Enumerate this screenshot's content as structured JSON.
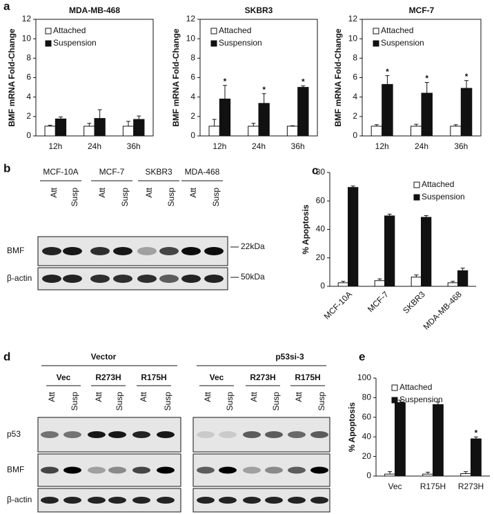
{
  "panel_labels": [
    "a",
    "b",
    "c",
    "d",
    "e"
  ],
  "chart_data": [
    {
      "type": "bar",
      "title": "MDA-MB-468",
      "y_label": "BMF mRNA Fold-Change",
      "box": true,
      "categories": [
        "12h",
        "24h",
        "36h"
      ],
      "ylim": [
        0,
        12
      ],
      "yticks": [
        0,
        2,
        4,
        6,
        8,
        10,
        12
      ],
      "series": [
        {
          "name": "Attached",
          "color": "#ffffff",
          "values": [
            1,
            1,
            1
          ],
          "errors": [
            0.1,
            0.3,
            0.5
          ]
        },
        {
          "name": "Suspension",
          "color": "#111111",
          "values": [
            1.75,
            1.8,
            1.7
          ],
          "errors": [
            0.2,
            0.9,
            0.35
          ]
        }
      ]
    },
    {
      "type": "bar",
      "title": "SKBR3",
      "y_label": "BMF mRNA Fold-Change",
      "box": true,
      "categories": [
        "12h",
        "24h",
        "36h"
      ],
      "ylim": [
        0,
        12
      ],
      "yticks": [
        0,
        2,
        4,
        6,
        8,
        10,
        12
      ],
      "series": [
        {
          "name": "Attached",
          "color": "#ffffff",
          "values": [
            1,
            1,
            1
          ],
          "errors": [
            0.7,
            0.3,
            0.05
          ]
        },
        {
          "name": "Suspension",
          "color": "#111111",
          "values": [
            3.8,
            3.35,
            5.0
          ],
          "errors": [
            1.4,
            1.0,
            0.15
          ],
          "significance": [
            "*",
            "*",
            "*"
          ]
        }
      ]
    },
    {
      "type": "bar",
      "title": "MCF-7",
      "y_label": "BMF mRNA Fold-Change",
      "box": true,
      "categories": [
        "12h",
        "24h",
        "36h"
      ],
      "ylim": [
        0,
        12
      ],
      "yticks": [
        0,
        2,
        4,
        6,
        8,
        10,
        12
      ],
      "series": [
        {
          "name": "Attached",
          "color": "#ffffff",
          "values": [
            1,
            1,
            1
          ],
          "errors": [
            0.15,
            0.2,
            0.15
          ]
        },
        {
          "name": "Suspension",
          "color": "#111111",
          "values": [
            5.3,
            4.4,
            4.9
          ],
          "errors": [
            0.9,
            1.1,
            0.8
          ],
          "significance": [
            "*",
            "*",
            "*"
          ]
        }
      ]
    },
    {
      "type": "bar",
      "y_label": "% Apoptosis",
      "box": false,
      "categories": [
        "MCF-10A",
        "MCF-7",
        "SKBR3",
        "MDA-MB-468"
      ],
      "ylim": [
        0,
        80
      ],
      "yticks": [
        0,
        20,
        40,
        60,
        80
      ],
      "series": [
        {
          "name": "Attached",
          "color": "#ffffff",
          "values": [
            2.5,
            4,
            6.5,
            2.5
          ],
          "errors": [
            1,
            1.2,
            1.5,
            1
          ]
        },
        {
          "name": "Suspension",
          "color": "#111111",
          "values": [
            69.5,
            49.5,
            48.5,
            11
          ],
          "errors": [
            1,
            1.2,
            1.2,
            1.8
          ]
        }
      ]
    },
    {
      "type": "bar",
      "y_label": "% Apoptosis",
      "box": false,
      "categories": [
        "Vec",
        "R175H",
        "R273H"
      ],
      "ylim": [
        0,
        100
      ],
      "yticks": [
        0,
        20,
        40,
        60,
        80,
        100
      ],
      "series": [
        {
          "name": "Attached",
          "color": "#ffffff",
          "values": [
            2,
            2,
            2.5
          ],
          "errors": [
            2.5,
            2,
            2
          ]
        },
        {
          "name": "Suspension",
          "color": "#111111",
          "values": [
            75,
            73,
            38
          ],
          "errors": [
            2.5,
            2.5,
            2
          ],
          "significance": [
            null,
            null,
            "*"
          ]
        }
      ]
    }
  ],
  "blot_b": {
    "groups": [
      "MCF-10A",
      "MCF-7",
      "SKBR3",
      "MDA-468"
    ],
    "lanes": [
      "Att",
      "Susp"
    ],
    "rows": [
      "BMF",
      "β-actin"
    ],
    "markers": [
      "22kDa",
      "50kDa"
    ]
  },
  "blot_d": {
    "conditions": [
      "Vector",
      "p53si-3"
    ],
    "groups": [
      "Vec",
      "R273H",
      "R175H"
    ],
    "lanes": [
      "Att",
      "Susp"
    ],
    "rows": [
      "p53",
      "BMF",
      "β-actin"
    ]
  }
}
